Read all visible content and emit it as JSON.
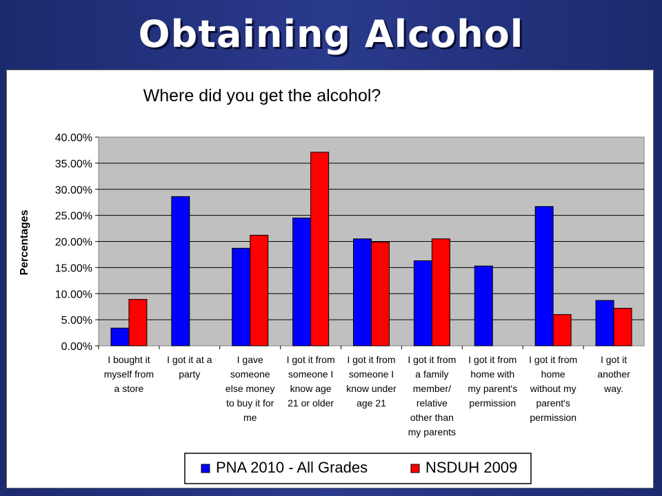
{
  "slide": {
    "title": "Obtaining Alcohol"
  },
  "colors": {
    "pna": "#0000ff",
    "nsduh": "#ff0000",
    "plot_bg": "#c0c0c0",
    "background": "#233384"
  },
  "chart_data": {
    "type": "bar",
    "title": "Where did you get the alcohol?",
    "xlabel": "",
    "ylabel": "Percentages",
    "ylim": [
      0,
      40
    ],
    "yticks": [
      "0.00%",
      "5.00%",
      "10.00%",
      "15.00%",
      "20.00%",
      "25.00%",
      "30.00%",
      "35.00%",
      "40.00%"
    ],
    "grid": true,
    "legend": "bottom",
    "categories": [
      [
        "I bought it",
        "myself from",
        "a store"
      ],
      [
        "I got it at a",
        "party"
      ],
      [
        "I gave",
        "someone",
        "else money",
        "to buy it for",
        "me"
      ],
      [
        "I got it from",
        "someone I",
        "know age",
        "21 or older"
      ],
      [
        "I got it from",
        "someone I",
        "know under",
        "age 21"
      ],
      [
        "I got it from",
        "a family",
        "member/",
        "relative",
        "other than",
        "my parents"
      ],
      [
        "I got it from",
        "home with",
        "my parent's",
        "permission"
      ],
      [
        "I got it from",
        "home",
        "without my",
        "parent's",
        "permission"
      ],
      [
        "I got it",
        "another",
        "way."
      ]
    ],
    "series": [
      {
        "name": "PNA 2010 - All Grades",
        "color": "#0000ff",
        "values": [
          3.4,
          28.6,
          18.7,
          24.5,
          20.5,
          16.3,
          15.3,
          26.7,
          8.7
        ]
      },
      {
        "name": "NSDUH 2009",
        "color": "#ff0000",
        "values": [
          8.9,
          null,
          21.2,
          37.1,
          19.9,
          20.5,
          null,
          6.0,
          7.2
        ]
      }
    ]
  }
}
